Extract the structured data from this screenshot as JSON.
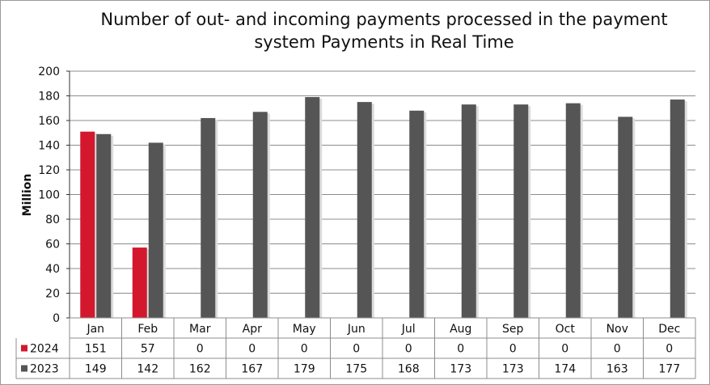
{
  "chart_data": {
    "type": "bar",
    "title": [
      "Number of out- and incoming payments processed in the payment",
      "system Payments in Real Time"
    ],
    "ylabel": "Million",
    "ylim": [
      0,
      200
    ],
    "yticks": [
      0,
      20,
      40,
      60,
      80,
      100,
      120,
      140,
      160,
      180,
      200
    ],
    "categories": [
      "Jan",
      "Feb",
      "Mar",
      "Apr",
      "May",
      "Jun",
      "Jul",
      "Aug",
      "Sep",
      "Oct",
      "Nov",
      "Dec"
    ],
    "series": [
      {
        "name": "2024",
        "color": "#d3182e",
        "values": [
          151,
          57,
          0,
          0,
          0,
          0,
          0,
          0,
          0,
          0,
          0,
          0
        ]
      },
      {
        "name": "2023",
        "color": "#555555",
        "values": [
          149,
          142,
          162,
          167,
          179,
          175,
          168,
          173,
          173,
          174,
          163,
          177
        ]
      }
    ],
    "grid": true,
    "legend": "data-table"
  }
}
